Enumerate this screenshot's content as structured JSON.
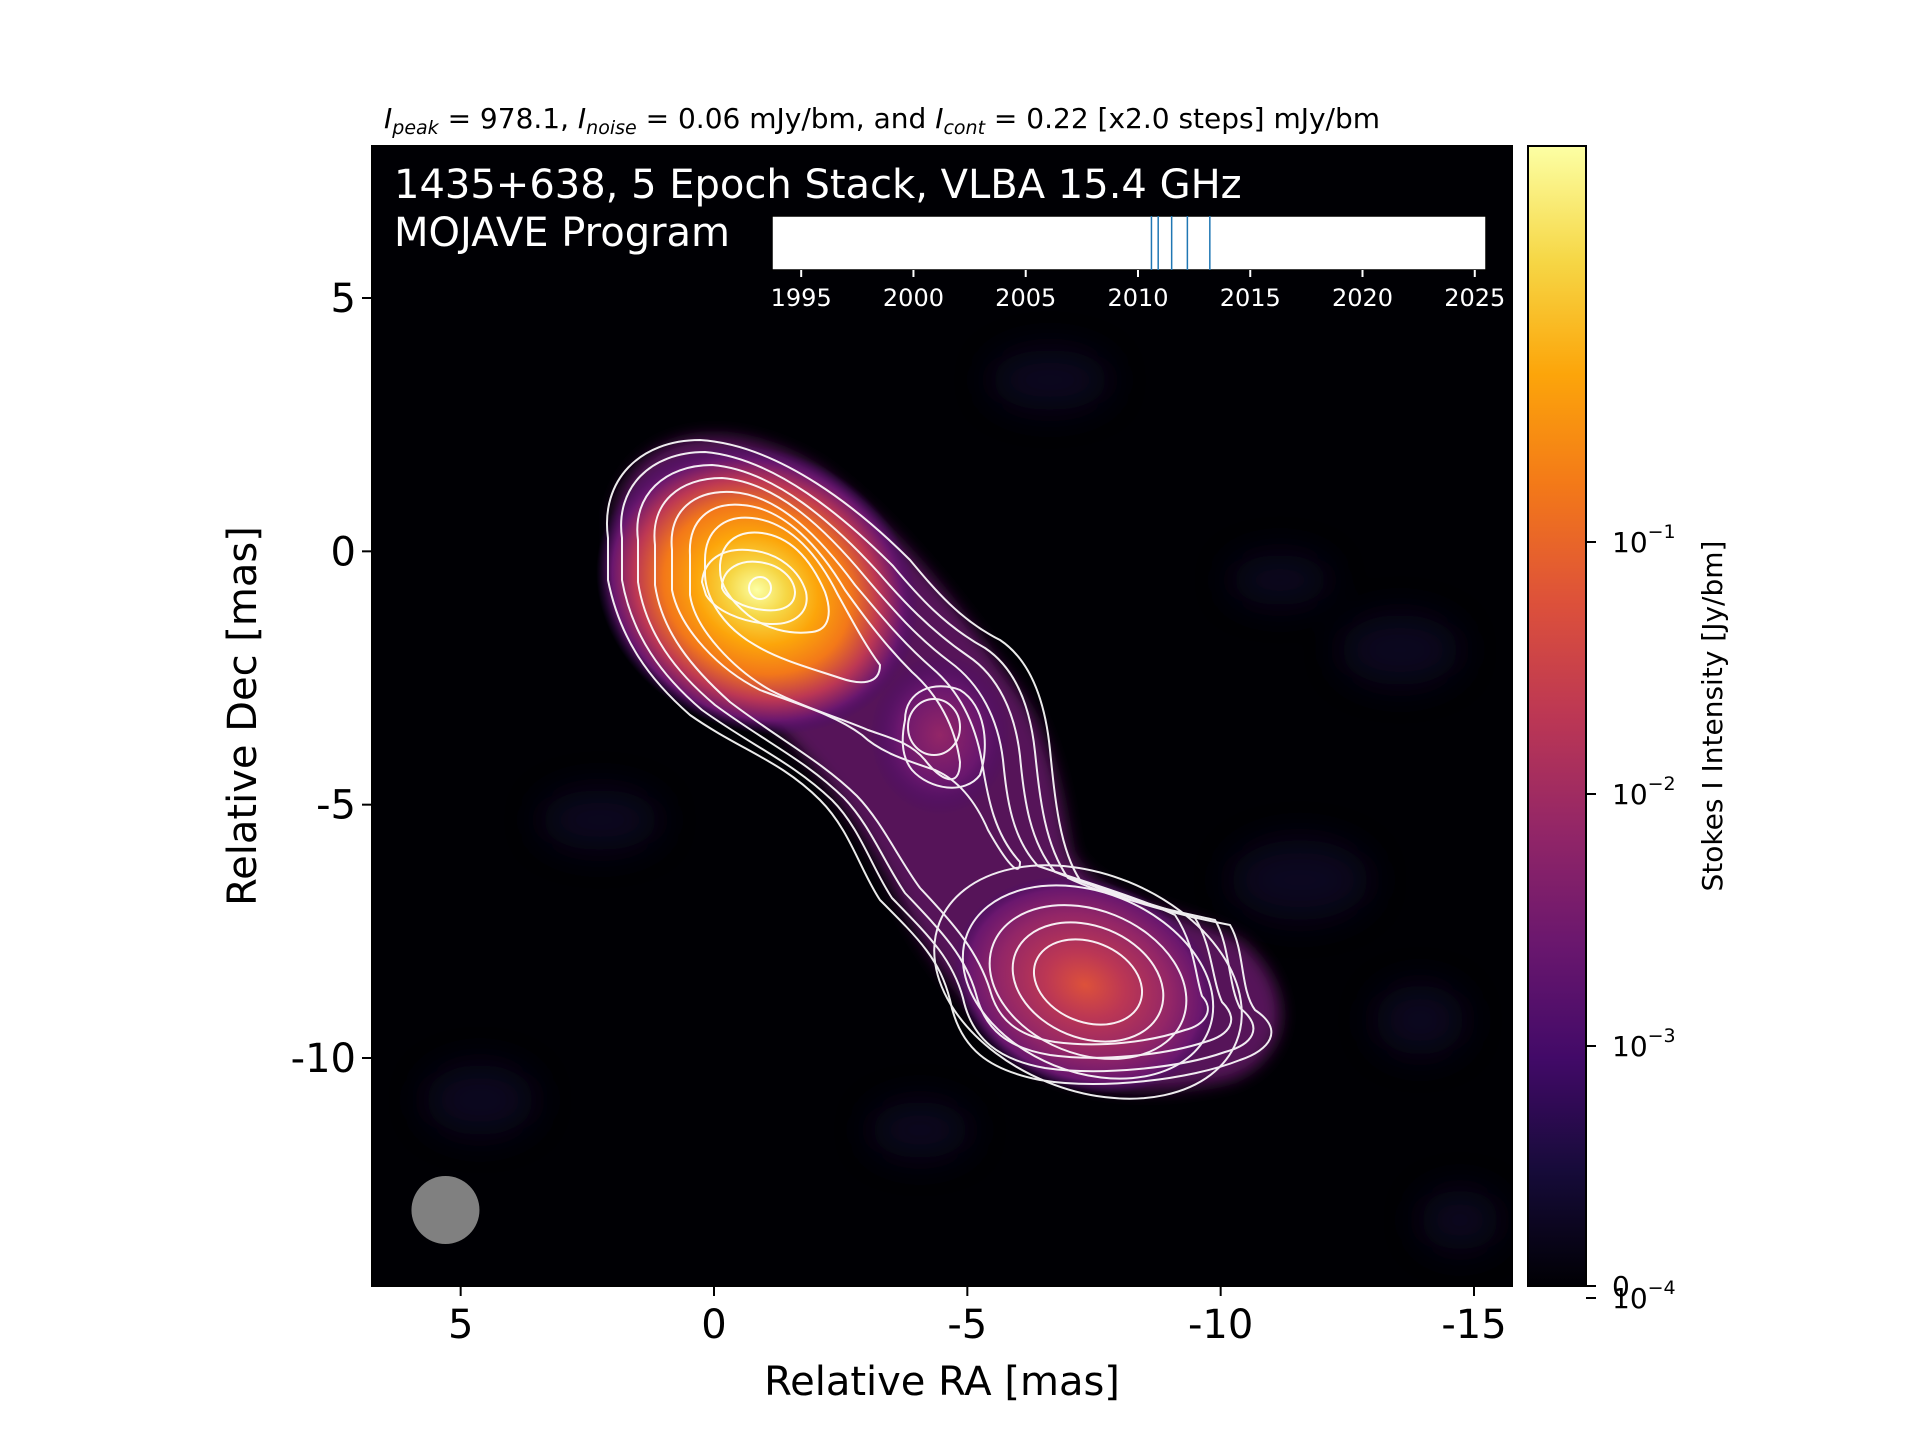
{
  "chart_data": {
    "type": "heatmap",
    "title": {
      "peak_sym": "I",
      "peak_sub": "peak",
      "peak_val": " = 978.1, ",
      "noise_sym": "I",
      "noise_sub": "noise",
      "noise_val": " = 0.06 mJy/bm, and ",
      "cont_sym": "I",
      "cont_sub": "cont",
      "cont_val": " = 0.22 [x2.0 steps] mJy/bm"
    },
    "overlay_line1": "1435+638, 5 Epoch Stack, VLBA 15.4 GHz",
    "overlay_line2": "MOJAVE Program",
    "xlabel": "Relative RA [mas]",
    "ylabel": "Relative Dec [mas]",
    "xlim": [
      6.75,
      -15.75
    ],
    "ylim": [
      -14.5,
      8.0
    ],
    "xticks": [
      5,
      0,
      -5,
      -10,
      -15
    ],
    "xtick_labels": [
      "5",
      "0",
      "-5",
      "-10",
      "-15"
    ],
    "yticks": [
      5,
      0,
      -5,
      -10
    ],
    "ytick_labels": [
      "5",
      "0",
      "-5",
      "-10"
    ],
    "components": [
      {
        "ra": -1.0,
        "dec": -0.8,
        "peak_jy": 0.978
      },
      {
        "ra": -4.3,
        "dec": -3.5,
        "peak_jy": 0.005
      },
      {
        "ra": -7.3,
        "dec": -8.6,
        "peak_jy": 0.012
      }
    ],
    "beam": {
      "ra": 5.3,
      "dec": -13.0
    },
    "epochs_inset": {
      "xlim": [
        1993.7,
        2025.5
      ],
      "ticks": [
        1995,
        2000,
        2005,
        2010,
        2015,
        2020,
        2025
      ],
      "tick_labels": [
        "1995",
        "2000",
        "2005",
        "2010",
        "2015",
        "2020",
        "2025"
      ],
      "epochs": [
        2010.6,
        2010.9,
        2011.5,
        2012.2,
        2013.2
      ]
    },
    "colorbar": {
      "label": "Stokes I Intensity [Jy/bm]",
      "scale": "log",
      "colormap": "inferno",
      "ticks": [
        {
          "value": 0.1,
          "base": "10",
          "exp": "−1"
        },
        {
          "value": 0.01,
          "base": "10",
          "exp": "−2"
        },
        {
          "value": 0.001,
          "base": "10",
          "exp": "−3"
        },
        {
          "value": 0.0001,
          "base": "10",
          "exp": "−4"
        },
        {
          "value": 0,
          "base": "0",
          "exp": ""
        }
      ]
    },
    "colors": {
      "background": "#000004",
      "contour": "#ffffff",
      "beam": "#808080",
      "epoch_line": "#1f77b4"
    }
  }
}
